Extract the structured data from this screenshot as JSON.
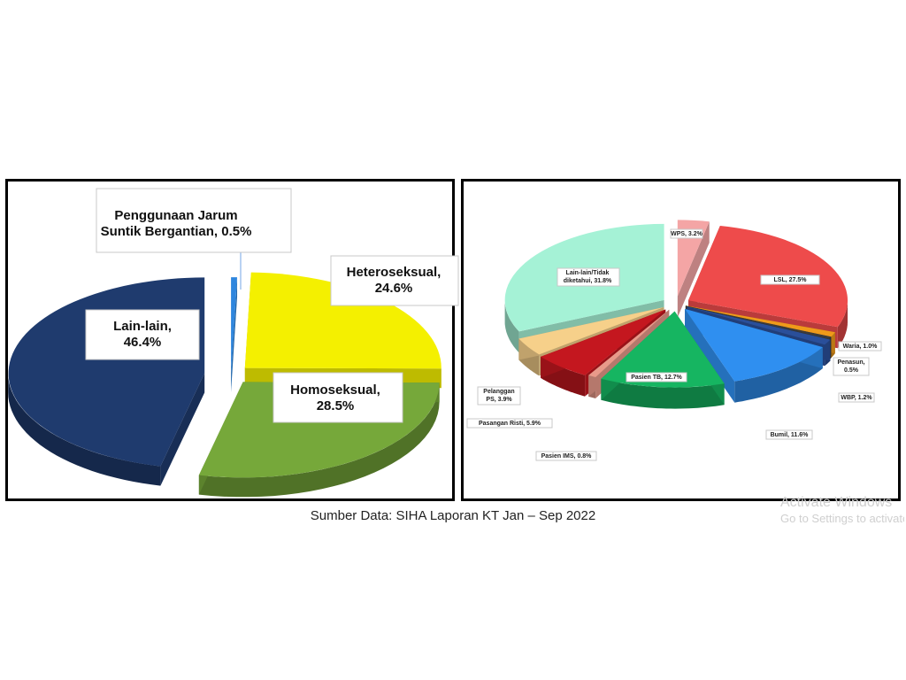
{
  "chart_data": [
    {
      "type": "pie",
      "title": "",
      "slices": [
        {
          "label": "Penggunaan Jarum Suntik Bergantian, 0.5%",
          "lines": [
            "Penggunaan Jarum",
            "Suntik Bergantian, 0.5%"
          ],
          "value": 0.5,
          "color": "#2e86de"
        },
        {
          "label": "Heteroseksual, 24.6%",
          "lines": [
            "Heteroseksual,",
            "24.6%"
          ],
          "value": 24.6,
          "color": "#f4f000"
        },
        {
          "label": "Homoseksual, 28.5%",
          "lines": [
            "Homoseksual,",
            "28.5%"
          ],
          "value": 28.5,
          "color": "#76a83a"
        },
        {
          "label": "Lain-lain, 46.4%",
          "lines": [
            "Lain-lain,",
            "46.4%"
          ],
          "value": 46.4,
          "color": "#1f3b6e"
        }
      ]
    },
    {
      "type": "pie",
      "title": "",
      "slices": [
        {
          "label": "WPS, 3.2%",
          "lines": [
            "WPS, 3.2%"
          ],
          "value": 3.2,
          "color": "#f4a5a5"
        },
        {
          "label": "LSL, 27.5%",
          "lines": [
            "LSL, 27.5%"
          ],
          "value": 27.5,
          "color": "#ee4b4b"
        },
        {
          "label": "Waria, 1.0%",
          "lines": [
            "Waria, 1.0%"
          ],
          "value": 1.0,
          "color": "#ef9a1a"
        },
        {
          "label": "Penasun, 0.5%",
          "lines": [
            "Penasun,",
            "0.5%"
          ],
          "value": 0.5,
          "color": "#3b3b3b"
        },
        {
          "label": "WBP, 1.2%",
          "lines": [
            "WBP, 1.2%"
          ],
          "value": 1.2,
          "color": "#2a4f9a"
        },
        {
          "label": "Bumil, 11.6%",
          "lines": [
            "Bumil, 11.6%"
          ],
          "value": 11.6,
          "color": "#2f8ff0"
        },
        {
          "label": "Pasien TB, 12.7%",
          "lines": [
            "Pasien TB, 12.7%"
          ],
          "value": 12.7,
          "color": "#16b561"
        },
        {
          "label": "Pasien IMS, 0.8%",
          "lines": [
            "Pasien IMS, 0.8%"
          ],
          "value": 0.8,
          "color": "#e89a8a"
        },
        {
          "label": "Pasangan Risti, 5.9%",
          "lines": [
            "Pasangan Risti, 5.9%"
          ],
          "value": 5.9,
          "color": "#c4171f"
        },
        {
          "label": "Pelanggan PS, 3.9%",
          "lines": [
            "Pelanggan",
            "PS, 3.9%"
          ],
          "value": 3.9,
          "color": "#f6d08a"
        },
        {
          "label": "Lain-lain/Tidak diketahui, 31.8%",
          "lines": [
            "Lain-lain/Tidak",
            "diketahui, 31.8%"
          ],
          "value": 31.8,
          "color": "#a5f2d6"
        }
      ]
    }
  ],
  "source": "Sumber Data: SIHA Laporan KT Jan – Sep 2022",
  "watermark": {
    "line1": "Activate Windows",
    "line2": "Go to Settings to activate Windows."
  }
}
